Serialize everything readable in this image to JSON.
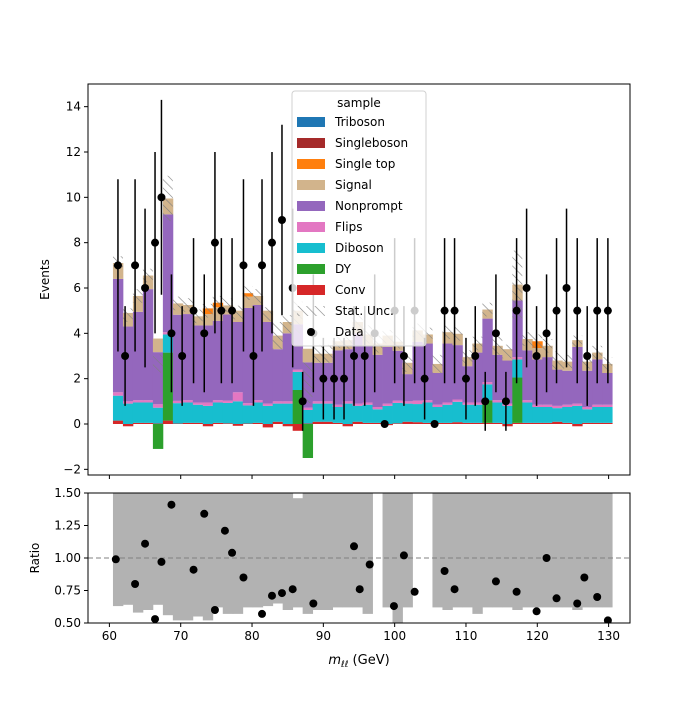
{
  "chart_data": {
    "type": "bar",
    "subtype": "stacked-histogram-with-ratio",
    "title": "",
    "xlabel": "m_{ℓℓ} (GeV)",
    "xlabel_main": "m",
    "xlabel_sub": "ℓℓ",
    "xlabel_unit": " (GeV)",
    "xlim": [
      57,
      133
    ],
    "xticks": [
      60,
      70,
      80,
      90,
      100,
      110,
      120,
      130
    ],
    "x_start": 60.5,
    "bin_width": 1.4,
    "main": {
      "ylabel": "Events",
      "ylim": [
        -2.25,
        15
      ],
      "yticks": [
        -2,
        0,
        2,
        4,
        6,
        8,
        10,
        12,
        14
      ],
      "series": [
        {
          "name": "Conv",
          "color": "#d62728",
          "values": [
            0.15,
            -0.1,
            0.05,
            0.05,
            0.02,
            0.15,
            0.02,
            0.05,
            0.05,
            -0.1,
            0.05,
            0.03,
            -0.08,
            0.02,
            0.05,
            -0.15,
            0.1,
            -0.1,
            -0.3,
            0.02,
            0.1,
            0.1,
            0.05,
            -0.1,
            0.1,
            0.05,
            0.05,
            -0.05,
            0.03,
            0.1,
            0.08,
            0.05,
            0.05,
            0.05,
            0.08,
            0.05,
            0.05,
            0.05,
            0.05,
            -0.1,
            0.05,
            0.05,
            0.05,
            0.05,
            0.1,
            0.05,
            -0.1,
            0.05,
            0.05,
            0.05
          ]
        },
        {
          "name": "DY",
          "color": "#2ca02c",
          "values": [
            0,
            0,
            0,
            0,
            -1.1,
            3.0,
            0,
            0,
            0,
            0,
            0,
            0,
            0,
            0,
            0,
            0,
            0,
            0,
            1.5,
            -1.5,
            0,
            0,
            0,
            0,
            0,
            0,
            0,
            0,
            0,
            0,
            0,
            0,
            0,
            0,
            0,
            0,
            0,
            1.0,
            0,
            0,
            2.0,
            0,
            0,
            0,
            0,
            0,
            0,
            0,
            0,
            0
          ]
        },
        {
          "name": "Diboson",
          "color": "#17becf",
          "values": [
            1.1,
            0.9,
            0.9,
            0.9,
            0.7,
            0.8,
            0.9,
            0.9,
            0.8,
            0.8,
            0.9,
            0.9,
            1.0,
            0.8,
            0.9,
            0.8,
            0.8,
            0.9,
            0.8,
            0.6,
            0.8,
            0.8,
            0.7,
            0.9,
            0.7,
            0.8,
            0.6,
            0.8,
            0.9,
            0.8,
            0.8,
            0.9,
            0.7,
            0.8,
            0.9,
            0.8,
            0.8,
            0.7,
            0.9,
            0.8,
            0.8,
            0.9,
            0.7,
            0.7,
            0.6,
            0.7,
            0.8,
            0.6,
            0.7,
            0.7
          ]
        },
        {
          "name": "Flips",
          "color": "#e377c2",
          "values": [
            0.15,
            0.1,
            0.1,
            0.1,
            0.15,
            0.1,
            0.1,
            0.1,
            0.1,
            0.15,
            0.1,
            0.1,
            0.4,
            0.1,
            0.1,
            0.1,
            0.1,
            0.1,
            0.1,
            0.1,
            0.1,
            0.1,
            0.1,
            0.1,
            0.1,
            0.1,
            0.1,
            0.1,
            0.1,
            0.1,
            0.15,
            0.1,
            0.1,
            0.1,
            0.1,
            0.1,
            0.1,
            0.1,
            0.1,
            0.1,
            0.1,
            0.1,
            0.1,
            0.1,
            0.1,
            0.1,
            0.1,
            0.1,
            0.1,
            0.1
          ]
        },
        {
          "name": "Nonprompt",
          "color": "#9467bd",
          "values": [
            5.0,
            3.3,
            3.9,
            4.9,
            2.3,
            5.2,
            3.8,
            3.8,
            3.4,
            3.4,
            3.5,
            3.8,
            3.1,
            4.2,
            4.2,
            3.6,
            2.3,
            3.0,
            2.0,
            2.0,
            1.7,
            1.7,
            2.4,
            2.3,
            3.1,
            2.5,
            2.3,
            2.5,
            2.2,
            1.2,
            2.6,
            2.5,
            1.4,
            2.6,
            2.4,
            1.6,
            2.2,
            2.8,
            2.0,
            1.9,
            2.5,
            2.2,
            2.0,
            2.1,
            1.6,
            1.5,
            2.5,
            1.6,
            2.0,
            1.4
          ]
        },
        {
          "name": "Signal",
          "color": "#d2b48c",
          "values": [
            0.7,
            0.6,
            0.7,
            0.6,
            0.6,
            0.7,
            0.5,
            0.4,
            0.4,
            0.5,
            0.6,
            0.4,
            0.5,
            0.5,
            0.4,
            0.5,
            0.6,
            0.5,
            0.6,
            0.6,
            0.4,
            0.4,
            0.4,
            0.4,
            0.5,
            0.5,
            0.5,
            0.5,
            0.4,
            0.5,
            0.5,
            0.4,
            0.4,
            0.5,
            0.5,
            0.4,
            0.4,
            0.4,
            0.4,
            0.5,
            0.7,
            0.5,
            0.5,
            0.5,
            0.4,
            0.4,
            0.3,
            0.4,
            0.3,
            0.4
          ]
        },
        {
          "name": "Single top",
          "color": "#ff7f0e",
          "values": [
            0,
            0,
            0,
            0,
            0,
            0,
            0,
            0,
            0,
            0.25,
            0.2,
            0,
            0,
            0.15,
            0,
            0,
            0,
            0,
            0,
            0,
            0,
            0,
            0,
            0,
            0,
            0,
            0,
            0,
            0,
            0,
            0,
            0,
            0,
            0,
            0,
            0,
            0,
            0,
            0,
            0,
            0,
            0,
            0.3,
            0,
            0,
            0,
            0,
            0,
            0,
            0
          ]
        },
        {
          "name": "Singleboson",
          "color": "#a52a2a",
          "values": [
            0,
            0,
            0,
            0,
            0,
            0,
            0,
            0,
            0,
            0,
            0,
            0,
            0,
            0,
            0,
            0,
            0,
            0,
            0,
            0,
            0,
            0,
            0,
            0,
            0,
            0,
            0,
            0,
            0,
            0,
            0,
            0,
            0,
            0,
            0,
            0,
            0,
            0,
            0,
            0,
            0,
            0,
            0,
            0,
            0,
            0,
            0,
            0,
            0,
            0
          ]
        },
        {
          "name": "Triboson",
          "color": "#1f77b4",
          "values": [
            0,
            0,
            0,
            0,
            0,
            0,
            0,
            0,
            0,
            0,
            0,
            0,
            0,
            0,
            0,
            0,
            0,
            0,
            0,
            0,
            0,
            0,
            0,
            0,
            0,
            0,
            0,
            0,
            0,
            0,
            0,
            0,
            0,
            0,
            0,
            0,
            0,
            0,
            0,
            0,
            0,
            0,
            0,
            0,
            0,
            0,
            0,
            0,
            0,
            0
          ]
        }
      ],
      "stat_unc": {
        "name": "Stat. Unc.",
        "values": [
          0.3,
          0.3,
          0.3,
          0.3,
          0.4,
          1.0,
          0.3,
          0.3,
          0.3,
          0.3,
          0.3,
          0.3,
          0.3,
          0.3,
          0.3,
          0.3,
          0.6,
          0.4,
          0.7,
          0.9,
          0.4,
          0.4,
          0.3,
          0.3,
          0.4,
          0.4,
          0.4,
          0.3,
          0.3,
          0.4,
          0.3,
          0.3,
          0.4,
          0.3,
          0.3,
          0.3,
          0.3,
          0.3,
          0.4,
          0.3,
          1.5,
          0.3,
          0.3,
          0.3,
          0.4,
          0.3,
          0.3,
          0.3,
          0.3,
          0.3
        ]
      },
      "data": {
        "name": "Data",
        "color": "#000000",
        "x": [
          61.2,
          62.2,
          63.6,
          65.0,
          66.4,
          67.3,
          68.7,
          70.2,
          71.8,
          73.3,
          74.8,
          75.7,
          77.2,
          78.8,
          80.2,
          81.4,
          82.8,
          84.2,
          85.7,
          87.1,
          88.6,
          90.0,
          91.5,
          92.9,
          94.3,
          95.8,
          97.2,
          98.6,
          100.0,
          101.3,
          102.8,
          104.2,
          105.6,
          107.0,
          108.4,
          110.0,
          111.3,
          112.7,
          114.2,
          115.6,
          117.1,
          118.5,
          119.9,
          121.3,
          122.7,
          124.1,
          125.6,
          127.0,
          128.4,
          129.9
        ],
        "y": [
          7,
          3,
          7,
          6,
          8,
          10,
          4,
          3,
          5,
          4,
          8,
          5,
          5,
          7,
          3,
          7,
          8,
          9,
          6,
          1,
          4,
          2,
          2,
          2,
          3,
          3,
          4,
          0,
          5,
          3,
          5,
          2,
          0,
          5,
          5,
          2,
          3,
          1,
          4,
          1,
          5,
          6,
          3,
          4,
          5,
          6,
          5,
          3,
          5,
          5
        ],
        "err": [
          3.8,
          2.2,
          3.8,
          3.5,
          4.0,
          4.3,
          2.6,
          2.2,
          3.2,
          2.6,
          4.0,
          3.2,
          3.2,
          3.8,
          2.2,
          3.8,
          4.0,
          4.2,
          3.5,
          1.3,
          2.6,
          1.8,
          1.8,
          1.8,
          2.2,
          2.2,
          2.6,
          0,
          3.2,
          2.2,
          3.2,
          1.8,
          0,
          3.2,
          3.2,
          1.8,
          2.2,
          1.3,
          2.6,
          1.3,
          3.2,
          3.5,
          2.2,
          2.6,
          3.2,
          3.5,
          3.2,
          2.2,
          3.2,
          3.2
        ]
      },
      "legend": {
        "title": "sample",
        "placement": "top-center",
        "entries": [
          "Triboson",
          "Singleboson",
          "Single top",
          "Signal",
          "Nonprompt",
          "Flips",
          "Diboson",
          "DY",
          "Conv",
          "Stat. Unc.",
          "Data"
        ]
      }
    },
    "ratio": {
      "ylabel": "Ratio",
      "ylim": [
        0.5,
        1.5
      ],
      "yticks": [
        0.5,
        0.75,
        1.0,
        1.25,
        1.5
      ],
      "yticklabels": [
        "0.50",
        "0.75",
        "1.00",
        "1.25",
        "1.50"
      ],
      "reference_line": 1.0,
      "band_lo": [
        0.63,
        0.64,
        0.58,
        0.6,
        0.64,
        0.56,
        0.52,
        0.52,
        0.55,
        0.52,
        0.62,
        0.57,
        0.57,
        0.62,
        0.62,
        0.63,
        0.65,
        0.6,
        0.62,
        0.57,
        0.6,
        0.6,
        0.62,
        0.62,
        0.62,
        0.57,
        null,
        0.62,
        0.5,
        0.62,
        null,
        null,
        0.62,
        0.6,
        0.62,
        0.62,
        0.57,
        0.62,
        0.62,
        0.62,
        0.6,
        0.62,
        0.62,
        0.62,
        0.62,
        0.62,
        0.6,
        0.62,
        0.62,
        0.62
      ],
      "band_hi": [
        1.5,
        1.5,
        1.5,
        1.5,
        1.5,
        1.5,
        1.5,
        1.5,
        1.5,
        1.5,
        1.5,
        1.5,
        1.5,
        1.5,
        1.5,
        1.5,
        1.5,
        1.5,
        1.46,
        1.5,
        1.5,
        1.5,
        1.5,
        1.5,
        1.5,
        1.5,
        null,
        1.5,
        1.5,
        1.5,
        null,
        null,
        1.5,
        1.5,
        1.5,
        1.5,
        1.5,
        1.5,
        1.5,
        1.5,
        1.5,
        1.5,
        1.5,
        1.5,
        1.5,
        1.5,
        1.5,
        1.5,
        1.5,
        1.5
      ],
      "x": [
        60.9,
        63.6,
        65.0,
        66.4,
        67.3,
        68.7,
        71.8,
        73.3,
        74.8,
        76.2,
        77.2,
        78.8,
        81.4,
        82.8,
        84.2,
        85.7,
        88.6,
        94.3,
        95.1,
        96.5,
        99.9,
        101.3,
        102.8,
        107.0,
        108.4,
        114.2,
        117.1,
        119.9,
        121.3,
        122.7,
        125.6,
        126.6,
        128.4,
        129.9
      ],
      "y": [
        0.99,
        0.8,
        1.11,
        0.53,
        0.97,
        1.41,
        0.91,
        1.34,
        0.6,
        1.21,
        1.04,
        0.85,
        0.57,
        0.71,
        0.73,
        0.76,
        0.65,
        1.09,
        0.76,
        0.95,
        0.63,
        1.02,
        0.74,
        0.9,
        0.76,
        0.82,
        0.74,
        0.59,
        1.0,
        0.69,
        0.65,
        0.85,
        0.7,
        0.52
      ]
    }
  }
}
